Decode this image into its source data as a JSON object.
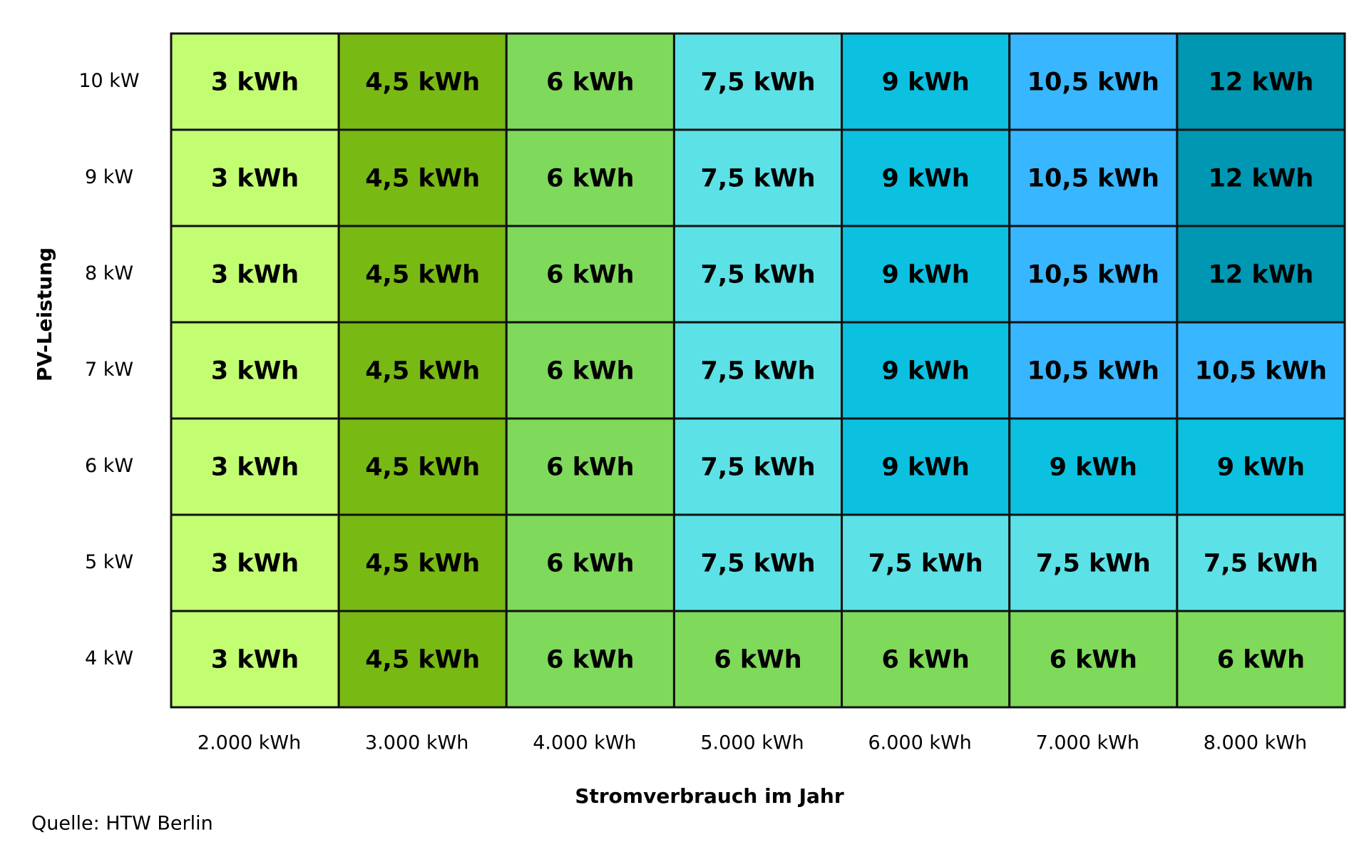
{
  "chart_data": {
    "type": "heatmap",
    "x_label": "Stromverbrauch im Jahr",
    "y_label": "PV-Leistung",
    "source": "Quelle: HTW Berlin",
    "x_categories": [
      "2.000 kWh",
      "3.000 kWh",
      "4.000 kWh",
      "5.000 kWh",
      "6.000 kWh",
      "7.000 kWh",
      "8.000 kWh"
    ],
    "y_categories": [
      "10 kW",
      "9 kW",
      "8 kW",
      "7 kW",
      "6 kW",
      "5 kW",
      "4 kW"
    ],
    "values": [
      [
        3,
        4.5,
        6,
        7.5,
        9,
        10.5,
        12
      ],
      [
        3,
        4.5,
        6,
        7.5,
        9,
        10.5,
        12
      ],
      [
        3,
        4.5,
        6,
        7.5,
        9,
        10.5,
        12
      ],
      [
        3,
        4.5,
        6,
        7.5,
        9,
        10.5,
        10.5
      ],
      [
        3,
        4.5,
        6,
        7.5,
        9,
        9,
        9
      ],
      [
        3,
        4.5,
        6,
        7.5,
        7.5,
        7.5,
        7.5
      ],
      [
        3,
        4.5,
        6,
        6,
        6,
        6,
        6
      ]
    ],
    "value_labels": [
      [
        "3 kWh",
        "4,5 kWh",
        "6 kWh",
        "7,5 kWh",
        "9 kWh",
        "10,5 kWh",
        "12 kWh"
      ],
      [
        "3 kWh",
        "4,5 kWh",
        "6 kWh",
        "7,5 kWh",
        "9 kWh",
        "10,5 kWh",
        "12 kWh"
      ],
      [
        "3 kWh",
        "4,5 kWh",
        "6 kWh",
        "7,5 kWh",
        "9 kWh",
        "10,5 kWh",
        "12 kWh"
      ],
      [
        "3 kWh",
        "4,5 kWh",
        "6 kWh",
        "7,5 kWh",
        "9 kWh",
        "10,5 kWh",
        "10,5 kWh"
      ],
      [
        "3 kWh",
        "4,5 kWh",
        "6 kWh",
        "7,5 kWh",
        "9 kWh",
        "9 kWh",
        "9 kWh"
      ],
      [
        "3 kWh",
        "4,5 kWh",
        "6 kWh",
        "7,5 kWh",
        "7,5 kWh",
        "7,5 kWh",
        "7,5 kWh"
      ],
      [
        "3 kWh",
        "4,5 kWh",
        "6 kWh",
        "6 kWh",
        "6 kWh",
        "6 kWh",
        "6 kWh"
      ]
    ],
    "colors": [
      [
        "#c3fd72",
        "#79b913",
        "#7fd95a",
        "#5ce1e6",
        "#0cc0df",
        "#38b6ff",
        "#0097b2"
      ],
      [
        "#c3fd72",
        "#79b913",
        "#7fd95a",
        "#5ce1e6",
        "#0cc0df",
        "#38b6ff",
        "#0097b2"
      ],
      [
        "#c3fd72",
        "#79b913",
        "#7fd95a",
        "#5ce1e6",
        "#0cc0df",
        "#38b6ff",
        "#0097b2"
      ],
      [
        "#c3fd72",
        "#79b913",
        "#7fd95a",
        "#5ce1e6",
        "#0cc0df",
        "#38b6ff",
        "#38b6ff"
      ],
      [
        "#c3fd72",
        "#79b913",
        "#7fd95a",
        "#5ce1e6",
        "#0cc0df",
        "#0cc0df",
        "#0cc0df"
      ],
      [
        "#c3fd72",
        "#79b913",
        "#7fd95a",
        "#5ce1e6",
        "#5ce1e6",
        "#5ce1e6",
        "#5ce1e6"
      ],
      [
        "#c3fd72",
        "#79b913",
        "#7fd95a",
        "#7fd95a",
        "#7fd95a",
        "#7fd95a",
        "#7fd95a"
      ]
    ]
  }
}
